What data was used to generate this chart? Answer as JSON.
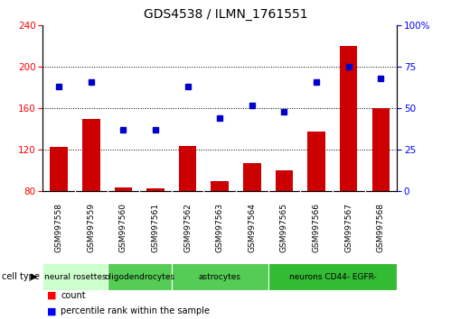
{
  "title": "GDS4538 / ILMN_1761551",
  "samples": [
    "GSM997558",
    "GSM997559",
    "GSM997560",
    "GSM997561",
    "GSM997562",
    "GSM997563",
    "GSM997564",
    "GSM997565",
    "GSM997566",
    "GSM997567",
    "GSM997568"
  ],
  "counts": [
    123,
    150,
    84,
    83,
    124,
    90,
    107,
    100,
    138,
    220,
    160
  ],
  "percentiles": [
    63,
    66,
    37,
    37,
    63,
    44,
    52,
    48,
    66,
    75,
    68
  ],
  "groups": [
    {
      "label": "neural rosettes",
      "xstart": 0,
      "xend": 1,
      "color": "#ccffcc"
    },
    {
      "label": "oligodendrocytes",
      "xstart": 1,
      "xend": 3,
      "color": "#55cc55"
    },
    {
      "label": "astrocytes",
      "xstart": 3,
      "xend": 6,
      "color": "#55cc55"
    },
    {
      "label": "neurons CD44- EGFR-",
      "xstart": 7,
      "xend": 11,
      "color": "#33bb33"
    }
  ],
  "ylim_left": [
    80,
    240
  ],
  "ylim_right": [
    0,
    100
  ],
  "yticks_left": [
    80,
    120,
    160,
    200,
    240
  ],
  "yticks_right": [
    0,
    25,
    50,
    75,
    100
  ],
  "bar_color": "#cc0000",
  "dot_color": "#0000cc",
  "bg_color": "#ffffff",
  "gray_band_color": "#d8d8d8"
}
